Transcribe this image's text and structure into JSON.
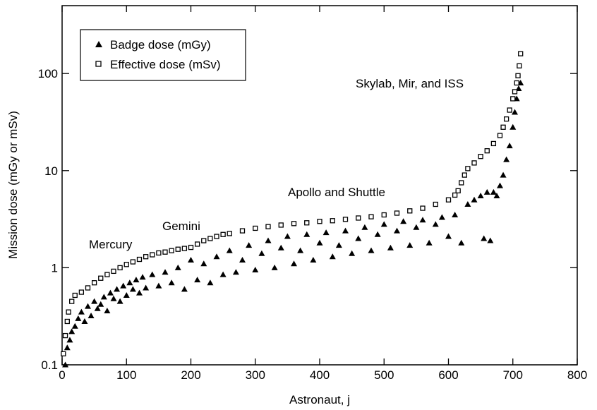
{
  "chart_data": {
    "type": "scatter",
    "xlabel": "Astronaut, j",
    "ylabel": "Mission dose (mGy or mSv)",
    "xlim": [
      0,
      800
    ],
    "xticks": [
      0,
      100,
      200,
      300,
      400,
      500,
      600,
      700,
      800
    ],
    "ylim": [
      0.1,
      500
    ],
    "yscale": "log",
    "yticks": [
      0.1,
      1,
      10,
      100
    ],
    "legend": "upper left",
    "annotations": [
      "Mercury",
      "Gemini",
      "Apollo and Shuttle",
      "Skylab, Mir, and ISS"
    ],
    "series": [
      {
        "name": "Badge dose (mGy)",
        "marker": "triangle",
        "color": "#000000",
        "x": [
          5,
          8,
          12,
          15,
          20,
          25,
          30,
          35,
          40,
          45,
          50,
          55,
          60,
          65,
          70,
          75,
          80,
          85,
          90,
          95,
          100,
          105,
          110,
          115,
          120,
          125,
          130,
          140,
          150,
          160,
          170,
          180,
          190,
          200,
          210,
          220,
          230,
          240,
          250,
          260,
          270,
          280,
          290,
          300,
          310,
          320,
          330,
          340,
          350,
          360,
          370,
          380,
          390,
          400,
          410,
          420,
          430,
          440,
          450,
          460,
          470,
          480,
          490,
          500,
          510,
          520,
          530,
          540,
          550,
          560,
          570,
          580,
          590,
          600,
          610,
          620,
          630,
          640,
          650,
          655,
          660,
          665,
          670,
          675,
          680,
          685,
          690,
          695,
          700,
          703,
          706,
          709,
          712
        ],
        "values": [
          0.1,
          0.15,
          0.18,
          0.22,
          0.25,
          0.3,
          0.35,
          0.28,
          0.4,
          0.32,
          0.45,
          0.38,
          0.42,
          0.5,
          0.36,
          0.55,
          0.48,
          0.6,
          0.45,
          0.65,
          0.52,
          0.7,
          0.6,
          0.75,
          0.55,
          0.8,
          0.62,
          0.85,
          0.65,
          0.9,
          0.7,
          1.0,
          0.6,
          1.2,
          0.75,
          1.1,
          0.7,
          1.3,
          0.85,
          1.5,
          0.9,
          1.2,
          1.7,
          0.95,
          1.4,
          1.9,
          1.0,
          1.6,
          2.1,
          1.1,
          1.5,
          2.2,
          1.2,
          1.8,
          2.3,
          1.3,
          1.7,
          2.4,
          1.4,
          2.0,
          2.6,
          1.5,
          2.2,
          2.8,
          1.6,
          2.4,
          3.0,
          1.7,
          2.6,
          3.1,
          1.8,
          2.8,
          3.3,
          2.1,
          3.5,
          1.8,
          4.5,
          5.0,
          5.5,
          2.0,
          6.0,
          1.9,
          6.0,
          5.5,
          7,
          9,
          13,
          18,
          28,
          40,
          55,
          70,
          80
        ]
      },
      {
        "name": "Effective dose (mSv)",
        "marker": "square",
        "color": "#000000",
        "x": [
          2,
          5,
          8,
          10,
          15,
          20,
          30,
          40,
          50,
          60,
          70,
          80,
          90,
          100,
          110,
          120,
          130,
          140,
          150,
          160,
          170,
          180,
          190,
          200,
          210,
          220,
          230,
          240,
          250,
          260,
          280,
          300,
          320,
          340,
          360,
          380,
          400,
          420,
          440,
          460,
          480,
          500,
          520,
          540,
          560,
          580,
          600,
          610,
          615,
          620,
          625,
          630,
          640,
          650,
          660,
          670,
          680,
          685,
          690,
          695,
          700,
          703,
          706,
          708,
          710,
          712
        ],
        "values": [
          0.13,
          0.2,
          0.28,
          0.35,
          0.45,
          0.52,
          0.56,
          0.62,
          0.7,
          0.78,
          0.85,
          0.92,
          1.0,
          1.08,
          1.15,
          1.22,
          1.3,
          1.36,
          1.42,
          1.45,
          1.5,
          1.55,
          1.58,
          1.62,
          1.75,
          1.9,
          2.0,
          2.1,
          2.2,
          2.25,
          2.4,
          2.55,
          2.65,
          2.75,
          2.85,
          2.9,
          3.0,
          3.05,
          3.15,
          3.25,
          3.35,
          3.5,
          3.65,
          3.85,
          4.1,
          4.5,
          5.0,
          5.6,
          6.2,
          7.5,
          9,
          10.5,
          12,
          14,
          16,
          19,
          23,
          28,
          34,
          42,
          55,
          65,
          80,
          95,
          120,
          160
        ]
      }
    ]
  }
}
